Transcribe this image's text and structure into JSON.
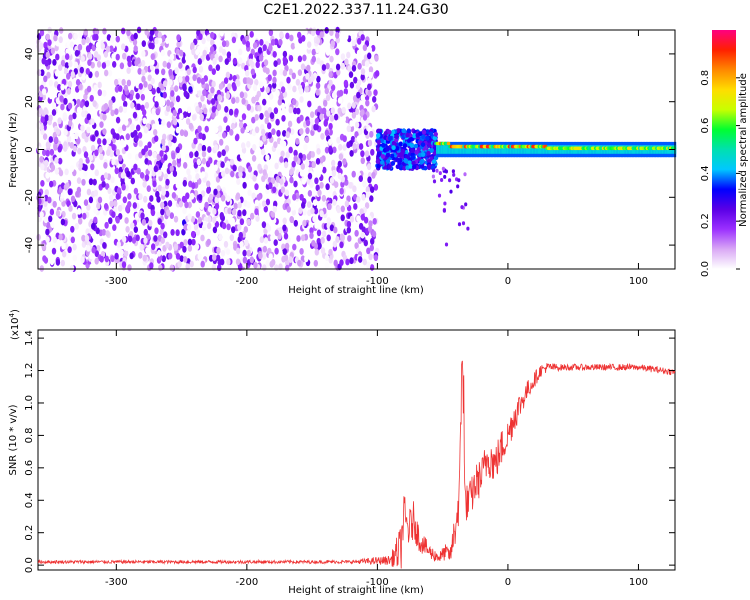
{
  "title": "C2E1.2022.337.11.24.G30",
  "chart_data": [
    {
      "type": "heatmap",
      "title": "C2E1.2022.337.11.24.G30",
      "xlabel": "Height of straight line (km)",
      "ylabel": "Frequency (Hz)",
      "xlim": [
        -360,
        128
      ],
      "ylim": [
        -50,
        50
      ],
      "x_ticks": [
        "-300",
        "-200",
        "-100",
        "0",
        "100"
      ],
      "y_ticks": [
        "-40",
        "-20",
        "0",
        "20",
        "40"
      ],
      "colorbar": {
        "label": "Normalized spectral amplitude",
        "range": [
          0,
          1
        ],
        "ticks": [
          "0.0",
          "0.2",
          "0.4",
          "0.6",
          "0.8"
        ],
        "colors": [
          "#ffffff",
          "#d9a8f5",
          "#9b30ff",
          "#5a00e6",
          "#0000ff",
          "#00c8ff",
          "#00e0b0",
          "#00ff30",
          "#c8ff00",
          "#ffdd00",
          "#ff8800",
          "#ff2000",
          "#ff0080"
        ]
      },
      "regions": [
        {
          "name": "broadband noise",
          "x": [
            -360,
            -100
          ],
          "freq": [
            -50,
            50
          ],
          "amplitude": [
            0.0,
            0.25
          ]
        },
        {
          "name": "onset burst",
          "x": [
            -100,
            -55
          ],
          "freq": [
            -8,
            8
          ],
          "amplitude": [
            0.3,
            0.6
          ]
        },
        {
          "name": "carrier line",
          "x": [
            -55,
            128
          ],
          "freq": [
            -2,
            3
          ],
          "amplitude": [
            0.5,
            0.95
          ]
        }
      ],
      "grid": false
    },
    {
      "type": "line",
      "xlabel": "Height of straight line (km)",
      "ylabel": "SNR (10 * v/v)",
      "scale_label": "(x10",
      "scale_exp": "4",
      "scale_close": ")",
      "xlim": [
        -360,
        128
      ],
      "ylim": [
        -0.03,
        1.45
      ],
      "x_ticks": [
        "-300",
        "-200",
        "-100",
        "0",
        "100"
      ],
      "y_ticks": [
        "0.0",
        "0.2",
        "0.4",
        "0.6",
        "0.8",
        "1.0",
        "1.2",
        "1.4"
      ],
      "line_color": "#ee3333",
      "series": [
        {
          "x": [
            -360,
            -300,
            -200,
            -120,
            -90,
            -82,
            -80,
            -76,
            -72,
            -68,
            -64,
            -60,
            -56,
            -52,
            -48,
            -44,
            -41,
            -39,
            -37,
            -35,
            -33,
            -31,
            -28,
            -25,
            -20,
            -15,
            -10,
            -5,
            0,
            5,
            10,
            15,
            20,
            25,
            30,
            40,
            60,
            80,
            100,
            128
          ],
          "y": [
            0.02,
            0.02,
            0.02,
            0.02,
            0.03,
            0.1,
            0.3,
            0.22,
            0.28,
            0.16,
            0.12,
            0.08,
            0.06,
            0.05,
            0.08,
            0.06,
            0.2,
            0.3,
            0.45,
            1.3,
            0.4,
            0.38,
            0.42,
            0.5,
            0.55,
            0.68,
            0.62,
            0.72,
            0.8,
            0.92,
            1.0,
            1.08,
            1.14,
            1.2,
            1.22,
            1.22,
            1.22,
            1.22,
            1.22,
            1.19
          ],
          "noise": [
            0.01,
            0.01,
            0.01,
            0.01,
            0.03,
            0.15,
            0.15,
            0.12,
            0.12,
            0.08,
            0.06,
            0.05,
            0.04,
            0.04,
            0.05,
            0.05,
            0.12,
            0.14,
            0.16,
            0.14,
            0.12,
            0.12,
            0.12,
            0.12,
            0.12,
            0.14,
            0.12,
            0.12,
            0.1,
            0.1,
            0.08,
            0.06,
            0.05,
            0.04,
            0.03,
            0.02,
            0.02,
            0.02,
            0.02,
            0.02
          ]
        }
      ],
      "grid": false
    }
  ]
}
